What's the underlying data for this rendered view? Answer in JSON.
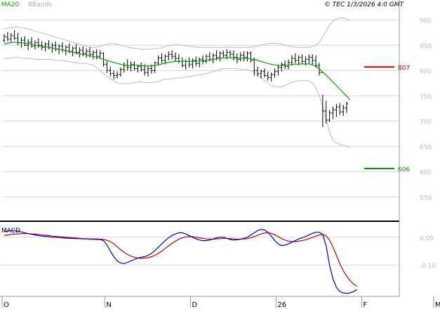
{
  "header": {
    "legend_ma": "MA20",
    "legend_bbands": "BBands",
    "credit": "© TEC 1/3/2026 4:0 GMT"
  },
  "macd_panel": {
    "label": "MACD"
  },
  "colors": {
    "price_bar": "#000000",
    "ma20": "#00aa00",
    "bbands": "#bbbbbb",
    "resistance": "#cc0000",
    "support": "#009900",
    "macd": "#0000cc",
    "signal": "#cc0000",
    "grid": "#d8d8d8",
    "axis": "#999999",
    "separator": "#000000"
  },
  "chart_data": [
    {
      "type": "ohlc",
      "name": "price",
      "y_ticks": [
        550,
        600,
        650,
        700,
        750,
        800,
        850,
        900
      ],
      "y_tick_labels": [
        "550",
        "600",
        "650",
        "700",
        "750",
        "800",
        "850",
        "900"
      ],
      "ylim": [
        506,
        920
      ],
      "x_labels": [
        "O",
        "N",
        "D",
        "26",
        "F",
        "M"
      ],
      "x_label_index": [
        0,
        30,
        55,
        80,
        105,
        126
      ],
      "bars": [
        [
          860,
          872,
          855,
          868
        ],
        [
          866,
          876,
          858,
          862
        ],
        [
          862,
          874,
          856,
          870
        ],
        [
          868,
          880,
          860,
          864
        ],
        [
          864,
          874,
          850,
          855
        ],
        [
          855,
          866,
          845,
          860
        ],
        [
          860,
          868,
          848,
          850
        ],
        [
          850,
          862,
          840,
          856
        ],
        [
          856,
          866,
          845,
          848
        ],
        [
          848,
          860,
          842,
          855
        ],
        [
          855,
          864,
          845,
          850
        ],
        [
          850,
          858,
          840,
          846
        ],
        [
          846,
          856,
          838,
          852
        ],
        [
          852,
          860,
          842,
          845
        ],
        [
          845,
          855,
          835,
          850
        ],
        [
          850,
          858,
          838,
          842
        ],
        [
          842,
          852,
          832,
          848
        ],
        [
          848,
          856,
          836,
          840
        ],
        [
          840,
          850,
          830,
          846
        ],
        [
          846,
          854,
          834,
          838
        ],
        [
          838,
          848,
          828,
          844
        ],
        [
          844,
          852,
          832,
          836
        ],
        [
          836,
          846,
          826,
          840
        ],
        [
          840,
          848,
          828,
          834
        ],
        [
          834,
          844,
          825,
          838
        ],
        [
          838,
          846,
          826,
          832
        ],
        [
          832,
          840,
          822,
          836
        ],
        [
          836,
          842,
          822,
          828
        ],
        [
          828,
          840,
          824,
          834
        ],
        [
          834,
          836,
          808,
          812
        ],
        [
          812,
          818,
          795,
          800
        ],
        [
          800,
          808,
          788,
          794
        ],
        [
          794,
          800,
          782,
          790
        ],
        [
          790,
          798,
          784,
          792
        ],
        [
          792,
          806,
          788,
          802
        ],
        [
          802,
          816,
          796,
          810
        ],
        [
          810,
          822,
          800,
          806
        ],
        [
          806,
          818,
          798,
          812
        ],
        [
          812,
          818,
          800,
          804
        ],
        [
          804,
          812,
          796,
          808
        ],
        [
          808,
          816,
          798,
          802
        ],
        [
          802,
          812,
          790,
          796
        ],
        [
          796,
          808,
          788,
          804
        ],
        [
          804,
          812,
          794,
          800
        ],
        [
          800,
          818,
          795,
          815
        ],
        [
          815,
          830,
          810,
          825
        ],
        [
          825,
          834,
          815,
          820
        ],
        [
          820,
          832,
          812,
          828
        ],
        [
          828,
          838,
          820,
          832
        ],
        [
          832,
          840,
          822,
          828
        ],
        [
          828,
          836,
          818,
          824
        ],
        [
          824,
          832,
          814,
          818
        ],
        [
          818,
          826,
          806,
          810
        ],
        [
          810,
          822,
          802,
          818
        ],
        [
          818,
          826,
          806,
          812
        ],
        [
          812,
          824,
          804,
          820
        ],
        [
          820,
          828,
          808,
          814
        ],
        [
          814,
          826,
          806,
          822
        ],
        [
          822,
          830,
          812,
          818
        ],
        [
          818,
          832,
          814,
          828
        ],
        [
          828,
          836,
          818,
          822
        ],
        [
          822,
          834,
          814,
          830
        ],
        [
          830,
          840,
          820,
          826
        ],
        [
          826,
          838,
          818,
          834
        ],
        [
          834,
          840,
          824,
          830
        ],
        [
          830,
          842,
          822,
          836
        ],
        [
          836,
          840,
          826,
          832
        ],
        [
          832,
          840,
          820,
          826
        ],
        [
          826,
          834,
          814,
          822
        ],
        [
          822,
          836,
          818,
          830
        ],
        [
          830,
          838,
          818,
          826
        ],
        [
          826,
          838,
          818,
          834
        ],
        [
          834,
          838,
          816,
          820
        ],
        [
          820,
          826,
          790,
          800
        ],
        [
          800,
          808,
          788,
          794
        ],
        [
          794,
          802,
          784,
          798
        ],
        [
          798,
          804,
          786,
          790
        ],
        [
          790,
          798,
          780,
          786
        ],
        [
          786,
          796,
          778,
          792
        ],
        [
          792,
          804,
          786,
          798
        ],
        [
          798,
          812,
          790,
          806
        ],
        [
          806,
          816,
          798,
          812
        ],
        [
          812,
          820,
          802,
          808
        ],
        [
          808,
          822,
          802,
          816
        ],
        [
          816,
          830,
          810,
          824
        ],
        [
          824,
          834,
          814,
          820
        ],
        [
          820,
          830,
          810,
          826
        ],
        [
          826,
          832,
          814,
          818
        ],
        [
          818,
          828,
          810,
          822
        ],
        [
          822,
          832,
          814,
          826
        ],
        [
          826,
          832,
          812,
          820
        ],
        [
          820,
          830,
          806,
          810
        ],
        [
          810,
          815,
          790,
          796
        ],
        [
          796,
          752,
          688,
          720
        ],
        [
          720,
          740,
          695,
          702
        ],
        [
          702,
          722,
          698,
          716
        ],
        [
          716,
          728,
          704,
          722
        ],
        [
          722,
          734,
          708,
          728
        ],
        [
          728,
          736,
          712,
          718
        ],
        [
          718,
          732,
          710,
          726
        ],
        [
          726,
          738,
          716,
          734
        ]
      ],
      "ma20": [
        852,
        854,
        855,
        856,
        856,
        855,
        854,
        853,
        852,
        850,
        849,
        848,
        847,
        846,
        845,
        843,
        842,
        841,
        839,
        838,
        836,
        835,
        833,
        832,
        831,
        829,
        828,
        826,
        824,
        822,
        820,
        818,
        816,
        814,
        812,
        811,
        810,
        810,
        810,
        810,
        810,
        809,
        809,
        809,
        810,
        811,
        813,
        815,
        816,
        817,
        818,
        818,
        818,
        818,
        818,
        818,
        818,
        819,
        819,
        820,
        821,
        822,
        823,
        824,
        825,
        825,
        825,
        825,
        825,
        824,
        824,
        824,
        823,
        822,
        820,
        818,
        816,
        814,
        812,
        811,
        810,
        810,
        810,
        811,
        812,
        812,
        813,
        813,
        813,
        813,
        811,
        808,
        803,
        797,
        791,
        784,
        777,
        770,
        763,
        756,
        749,
        742
      ],
      "bb_upper": [
        882,
        884,
        885,
        886,
        886,
        885,
        884,
        882,
        880,
        878,
        876,
        874,
        872,
        870,
        868,
        866,
        864,
        862,
        860,
        858,
        856,
        854,
        852,
        850,
        848,
        846,
        845,
        846,
        848,
        850,
        852,
        853,
        853,
        852,
        850,
        848,
        846,
        845,
        844,
        843,
        842,
        842,
        842,
        842,
        843,
        844,
        845,
        847,
        849,
        850,
        851,
        851,
        850,
        849,
        848,
        847,
        846,
        846,
        846,
        846,
        846,
        846,
        846,
        846,
        846,
        846,
        846,
        846,
        846,
        846,
        846,
        846,
        846,
        847,
        848,
        850,
        852,
        853,
        854,
        854,
        853,
        852,
        850,
        848,
        847,
        846,
        846,
        846,
        846,
        846,
        847,
        850,
        856,
        866,
        878,
        890,
        898,
        902,
        904,
        904,
        902,
        898
      ],
      "bb_lower": [
        822,
        824,
        825,
        826,
        826,
        825,
        824,
        824,
        824,
        822,
        822,
        822,
        822,
        822,
        822,
        820,
        820,
        820,
        818,
        818,
        816,
        816,
        814,
        814,
        814,
        812,
        811,
        806,
        800,
        794,
        788,
        783,
        779,
        776,
        774,
        774,
        774,
        775,
        776,
        777,
        778,
        776,
        776,
        776,
        777,
        778,
        781,
        783,
        783,
        784,
        785,
        785,
        786,
        787,
        788,
        789,
        790,
        792,
        792,
        794,
        796,
        798,
        800,
        802,
        804,
        804,
        804,
        804,
        804,
        802,
        802,
        802,
        800,
        797,
        792,
        786,
        780,
        775,
        770,
        768,
        767,
        768,
        770,
        774,
        777,
        778,
        780,
        780,
        780,
        780,
        775,
        766,
        750,
        728,
        704,
        678,
        662,
        656,
        654,
        652,
        650,
        648
      ],
      "levels": [
        {
          "label": "807",
          "value": 807,
          "color": "#cc0000"
        },
        {
          "label": "606",
          "value": 606,
          "color": "#009900"
        }
      ]
    },
    {
      "type": "line",
      "name": "macd",
      "y_ticks": [
        0,
        -0.1
      ],
      "y_tick_labels": [
        "0.00",
        "-0.10"
      ],
      "ylim": [
        -0.21,
        0.05
      ],
      "series": [
        {
          "name": "MACD",
          "values": [
            0.02,
            0.022,
            0.024,
            0.024,
            0.022,
            0.019,
            0.016,
            0.013,
            0.011,
            0.008,
            0.006,
            0.004,
            0.003,
            0.002,
            0.0,
            0.0,
            -0.001,
            -0.002,
            -0.003,
            -0.004,
            -0.004,
            -0.005,
            -0.005,
            -0.006,
            -0.006,
            -0.007,
            -0.007,
            -0.008,
            -0.008,
            -0.012,
            -0.028,
            -0.05,
            -0.07,
            -0.085,
            -0.093,
            -0.095,
            -0.09,
            -0.085,
            -0.08,
            -0.075,
            -0.072,
            -0.07,
            -0.065,
            -0.058,
            -0.048,
            -0.036,
            -0.024,
            -0.012,
            -0.002,
            0.006,
            0.012,
            0.016,
            0.016,
            0.012,
            0.006,
            0.0,
            -0.006,
            -0.01,
            -0.012,
            -0.012,
            -0.01,
            -0.006,
            -0.002,
            0.0,
            0.0,
            -0.004,
            -0.008,
            -0.01,
            -0.009,
            -0.007,
            -0.004,
            0.0,
            0.008,
            0.016,
            0.024,
            0.028,
            0.026,
            0.018,
            0.004,
            -0.012,
            -0.024,
            -0.03,
            -0.028,
            -0.024,
            -0.018,
            -0.012,
            -0.006,
            -0.002,
            0.002,
            0.008,
            0.014,
            0.018,
            0.018,
            0.01,
            -0.03,
            -0.1,
            -0.15,
            -0.18,
            -0.195,
            -0.2,
            -0.202,
            -0.2,
            -0.195,
            -0.188
          ]
        },
        {
          "name": "Signal",
          "values": [
            0.006,
            0.008,
            0.01,
            0.011,
            0.012,
            0.013,
            0.013,
            0.013,
            0.012,
            0.011,
            0.01,
            0.008,
            0.007,
            0.006,
            0.004,
            0.003,
            0.002,
            0.001,
            0.0,
            -0.001,
            -0.002,
            -0.003,
            -0.004,
            -0.005,
            -0.005,
            -0.006,
            -0.006,
            -0.006,
            -0.007,
            -0.008,
            -0.011,
            -0.016,
            -0.024,
            -0.034,
            -0.045,
            -0.054,
            -0.062,
            -0.068,
            -0.072,
            -0.075,
            -0.076,
            -0.075,
            -0.074,
            -0.07,
            -0.065,
            -0.058,
            -0.05,
            -0.04,
            -0.031,
            -0.022,
            -0.014,
            -0.007,
            -0.002,
            0.001,
            0.002,
            0.002,
            0.0,
            -0.002,
            -0.004,
            -0.006,
            -0.007,
            -0.007,
            -0.006,
            -0.005,
            -0.004,
            -0.004,
            -0.005,
            -0.006,
            -0.007,
            -0.007,
            -0.006,
            -0.005,
            -0.002,
            0.002,
            0.007,
            0.012,
            0.015,
            0.016,
            0.014,
            0.009,
            0.002,
            -0.005,
            -0.01,
            -0.014,
            -0.016,
            -0.016,
            -0.014,
            -0.012,
            -0.009,
            -0.005,
            -0.001,
            0.004,
            0.008,
            0.01,
            0.005,
            -0.01,
            -0.035,
            -0.065,
            -0.095,
            -0.12,
            -0.14,
            -0.156,
            -0.168,
            -0.176
          ]
        }
      ]
    }
  ]
}
